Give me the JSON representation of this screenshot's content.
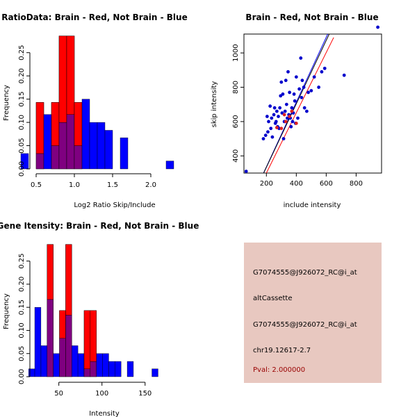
{
  "colors": {
    "red": "#ff0000",
    "blue": "#0000ff",
    "purple": "#7f0080",
    "box_bg": "#e8c8c0",
    "pval_text": "#990000",
    "red_point": "#dd2222",
    "blue_point": "#0000cc"
  },
  "info": {
    "line1": "G7074555@J926072_RC@i_at",
    "line2": "altCassette",
    "line3": "G7074555@J926072_RC@i_at",
    "line4": "chr19.12617-2.7",
    "pval": "Pval: 2.000000"
  },
  "chart_data": [
    {
      "type": "bar",
      "subtype": "overlaid-histogram",
      "title": "RatioData: Brain - Red, Not Brain - Blue",
      "xlabel": "Log2 Ratio Skip/Include",
      "ylabel": "Frequency",
      "xlim": [
        0.3,
        2.3
      ],
      "ylim": [
        0,
        0.29
      ],
      "bin_width": 0.1,
      "x_ticks": [
        0.5,
        1.0,
        1.5,
        2.0
      ],
      "x_tick_labels": [
        "0.5",
        "1.0",
        "1.5",
        "2.0"
      ],
      "y_ticks": [
        0,
        0.05,
        0.1,
        0.15,
        0.2,
        0.25
      ],
      "y_tick_labels": [
        "0.00",
        "0.05",
        "0.10",
        "0.15",
        "0.20",
        "0.25"
      ],
      "bin_starts": [
        0.3,
        0.5,
        0.6,
        0.7,
        0.8,
        0.9,
        1.0,
        1.1,
        1.2,
        1.3,
        1.4,
        1.6,
        2.2
      ],
      "series": [
        {
          "name": "Brain",
          "color": "red",
          "values": [
            0,
            0.143,
            0.0,
            0.143,
            0.286,
            0.286,
            0.143,
            0,
            0,
            0,
            0,
            0,
            0
          ]
        },
        {
          "name": "Not Brain",
          "color": "blue",
          "values": [
            0.033,
            0.033,
            0.117,
            0.05,
            0.1,
            0.117,
            0.05,
            0.15,
            0.1,
            0.1,
            0.083,
            0.067,
            0.017
          ]
        }
      ]
    },
    {
      "type": "scatter",
      "title": "Brain - Red, Not Brain - Blue",
      "xlabel": "include intensity",
      "ylabel": "skip intensity",
      "xlim": [
        50,
        970
      ],
      "ylim": [
        300,
        1110
      ],
      "x_ticks": [
        200,
        400,
        600,
        800
      ],
      "x_tick_labels": [
        "200",
        "400",
        "600",
        "800"
      ],
      "y_ticks": [
        400,
        600,
        800,
        1000
      ],
      "y_tick_labels": [
        "400",
        "600",
        "800",
        "1000"
      ],
      "series": [
        {
          "name": "Not Brain",
          "color": "blue_point",
          "x": [
            65,
            180,
            195,
            205,
            210,
            215,
            225,
            230,
            235,
            240,
            250,
            255,
            260,
            265,
            270,
            275,
            280,
            285,
            290,
            295,
            300,
            305,
            310,
            315,
            320,
            325,
            330,
            335,
            340,
            345,
            350,
            355,
            360,
            365,
            370,
            375,
            380,
            385,
            390,
            395,
            400,
            410,
            420,
            430,
            435,
            440,
            450,
            455,
            470,
            480,
            500,
            520,
            550,
            570,
            590,
            720,
            945
          ],
          "y": [
            310,
            500,
            520,
            630,
            540,
            600,
            690,
            560,
            620,
            510,
            640,
            680,
            590,
            600,
            660,
            570,
            630,
            560,
            680,
            750,
            830,
            650,
            760,
            500,
            600,
            660,
            840,
            700,
            620,
            890,
            640,
            770,
            620,
            570,
            680,
            600,
            650,
            760,
            720,
            590,
            860,
            620,
            790,
            970,
            740,
            840,
            800,
            680,
            660,
            770,
            780,
            860,
            800,
            890,
            910,
            870,
            1150
          ]
        },
        {
          "name": "Brain",
          "color": "red_point",
          "x": [
            270,
            300,
            320,
            330,
            355,
            370,
            400
          ],
          "y": [
            565,
            560,
            640,
            600,
            630,
            660,
            590
          ]
        }
      ],
      "lines": [
        {
          "name": "Not Brain fit",
          "color": "blue",
          "x": [
            160,
            610
          ],
          "y": [
            260,
            1110
          ]
        },
        {
          "name": "identity",
          "color": "black",
          "x": [
            160,
            620
          ],
          "y": [
            260,
            1110
          ]
        },
        {
          "name": "Brain fit",
          "color": "red",
          "x": [
            160,
            650
          ],
          "y": [
            230,
            1090
          ]
        }
      ]
    },
    {
      "type": "bar",
      "subtype": "overlaid-histogram",
      "title": "Gene Itensity: Brain - Red, Not Brain - Blue",
      "xlabel": "Intensity",
      "ylabel": "Frequency",
      "xlim": [
        10,
        180
      ],
      "ylim": [
        0,
        0.29
      ],
      "bin_width": 7.14,
      "x_ticks": [
        50,
        100,
        150
      ],
      "x_tick_labels": [
        "50",
        "100",
        "150"
      ],
      "y_ticks": [
        0,
        0.05,
        0.1,
        0.15,
        0.2,
        0.25
      ],
      "y_tick_labels": [
        "0.00",
        "0.05",
        "0.10",
        "0.15",
        "0.20",
        "0.25"
      ],
      "bin_starts": [
        15,
        22.1,
        29.3,
        36.4,
        43.6,
        50.7,
        57.9,
        65.0,
        72.1,
        79.3,
        86.4,
        93.6,
        100.7,
        107.9,
        115.0,
        129.3,
        157.9
      ],
      "series": [
        {
          "name": "Brain",
          "color": "red",
          "values": [
            0,
            0,
            0,
            0.286,
            0,
            0.143,
            0.286,
            0,
            0,
            0.143,
            0.143,
            0,
            0,
            0,
            0,
            0,
            0
          ]
        },
        {
          "name": "Not Brain",
          "color": "blue",
          "values": [
            0.017,
            0.15,
            0.067,
            0.167,
            0.05,
            0.083,
            0.133,
            0.067,
            0.05,
            0.017,
            0.033,
            0.05,
            0.05,
            0.033,
            0.033,
            0.033,
            0.017
          ]
        }
      ]
    }
  ]
}
